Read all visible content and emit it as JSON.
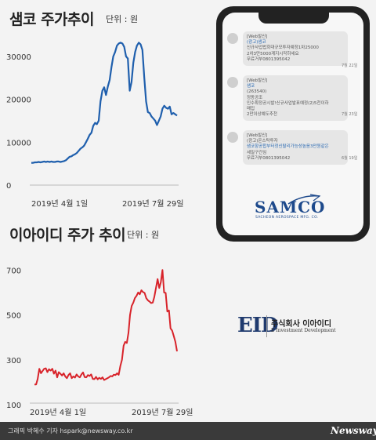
{
  "chart_data": [
    {
      "type": "line",
      "title": "샘코 주가추이",
      "unit_label": "단위 : 원",
      "x_start_label": "2019년 4월 1일",
      "x_end_label": "2019년 7월 29일",
      "yticks": [
        "30000",
        "20000",
        "10000",
        "0"
      ],
      "ylim": [
        0,
        34000
      ],
      "color": "#1f5fad",
      "values": [
        5200,
        5200,
        5300,
        5300,
        5400,
        5300,
        5400,
        5500,
        5400,
        5500,
        5400,
        5500,
        5400,
        5400,
        5500,
        5500,
        5400,
        5500,
        5600,
        5800,
        6200,
        6600,
        6700,
        7000,
        7200,
        7500,
        8000,
        8500,
        8800,
        9200,
        10000,
        10800,
        11700,
        12200,
        13800,
        14500,
        14200,
        15000,
        19500,
        22000,
        22800,
        21000,
        23000,
        24500,
        27500,
        30000,
        31000,
        32500,
        33000,
        33200,
        33000,
        32200,
        30000,
        29500,
        22000,
        24000,
        28500,
        31000,
        32500,
        33200,
        32800,
        31500,
        25000,
        19500,
        17000,
        16800,
        16000,
        15500,
        15000,
        14000,
        15000,
        16000,
        17800,
        18500,
        18000,
        17800,
        18300,
        16500,
        16800,
        16500,
        16200
      ],
      "grid": false
    },
    {
      "type": "line",
      "title": "이아이디 주가 추이",
      "unit_label": "단위 : 원",
      "x_start_label": "2019년 4월 1일",
      "x_end_label": "2019년 7월 29일",
      "yticks": [
        "700",
        "500",
        "300",
        "100"
      ],
      "ylim": [
        100,
        750
      ],
      "color": "#d8232a",
      "values": [
        190,
        190,
        215,
        260,
        240,
        250,
        260,
        262,
        245,
        258,
        252,
        260,
        238,
        252,
        222,
        245,
        238,
        230,
        240,
        226,
        218,
        232,
        240,
        218,
        226,
        221,
        235,
        226,
        222,
        235,
        244,
        223,
        222,
        232,
        228,
        235,
        215,
        214,
        224,
        213,
        220,
        215,
        222,
        210,
        214,
        218,
        222,
        228,
        226,
        234,
        232,
        240,
        233,
        272,
        300,
        363,
        380,
        375,
        420,
        500,
        540,
        555,
        575,
        585,
        600,
        592,
        610,
        602,
        598,
        575,
        565,
        560,
        553,
        555,
        580,
        620,
        660,
        620,
        645,
        700,
        600,
        598,
        515,
        520,
        440,
        430,
        405,
        380,
        338
      ],
      "grid": false
    }
  ],
  "phone": {
    "messages": [
      {
        "lines": [
          "[Web발신]",
          "(광고)샘코",
          "신규사업법회대규모투자예정1차25000",
          "2차3만5000계지시작하세요",
          "무료거부0801395042"
        ],
        "highlight": "샘코",
        "time": "7월 22일"
      },
      {
        "lines": [
          "[Web발신]",
          "샘코",
          "(263540)",
          "정동공조",
          "인수확정공시발!신규사업발표예정(2)5천이하",
          "매집",
          "2만이상예도추천"
        ],
        "highlight": "샘코",
        "time": "7월 23일"
      },
      {
        "lines": [
          "[Web발신]",
          "(광고)온스탁투자",
          "샘코항공합부터정신랄리가능성높음3만원같은",
          "세밀구간임",
          "무료거부0801395042"
        ],
        "highlight": "샘코",
        "time": "6월 19일"
      }
    ],
    "samco_logo": "SAMCO",
    "samco_sub": "SACHEON AEROSPACE MFG. CO."
  },
  "eid": {
    "logo": "EID",
    "name_kr": "주식회사 이아이디",
    "name_en": "E Investment Development"
  },
  "footer": {
    "credit": "그래픽 박혜수 기자 hspark@newsway.co.kr",
    "brand": "Newsway"
  }
}
